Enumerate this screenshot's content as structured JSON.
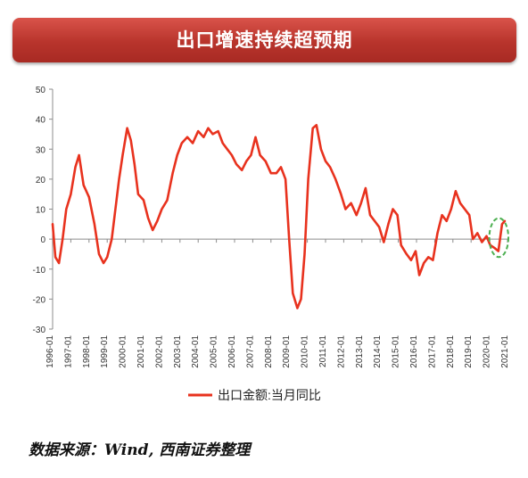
{
  "header": {
    "title": "出口增速持续超预期"
  },
  "source": "数据来源：Wind, 西南证券整理",
  "chart_data": {
    "type": "line",
    "title": "",
    "xlabel": "",
    "ylabel": "",
    "ylim": [
      -30,
      50
    ],
    "yticks": [
      -30,
      -20,
      -10,
      0,
      10,
      20,
      30,
      40,
      50
    ],
    "x_tick_labels": [
      "1996-01",
      "1997-01",
      "1998-01",
      "1999-01",
      "2000-01",
      "2001-01",
      "2002-01",
      "2003-01",
      "2004-01",
      "2005-01",
      "2006-01",
      "2007-01",
      "2008-01",
      "2009-01",
      "2010-01",
      "2011-01",
      "2012-01",
      "2013-01",
      "2014-01",
      "2015-01",
      "2016-01",
      "2017-01",
      "2018-01",
      "2019-01",
      "2020-01",
      "2021-01"
    ],
    "x_start_year": 1996,
    "grid": false,
    "legend_position": "bottom",
    "series_color": "#e8321e",
    "highlight_color": "#4caf50",
    "series": [
      {
        "name": "出口金额:当月同比",
        "points": [
          [
            1996.0,
            5
          ],
          [
            1996.15,
            -6
          ],
          [
            1996.35,
            -8
          ],
          [
            1996.55,
            0
          ],
          [
            1996.75,
            10
          ],
          [
            1997.0,
            15
          ],
          [
            1997.25,
            24
          ],
          [
            1997.45,
            28
          ],
          [
            1997.7,
            18
          ],
          [
            1998.0,
            14
          ],
          [
            1998.3,
            5
          ],
          [
            1998.55,
            -5
          ],
          [
            1998.8,
            -8
          ],
          [
            1999.0,
            -6
          ],
          [
            1999.25,
            0
          ],
          [
            1999.45,
            10
          ],
          [
            1999.65,
            20
          ],
          [
            1999.85,
            28
          ],
          [
            2000.1,
            37
          ],
          [
            2000.3,
            33
          ],
          [
            2000.5,
            25
          ],
          [
            2000.7,
            15
          ],
          [
            2001.0,
            13
          ],
          [
            2001.25,
            7
          ],
          [
            2001.5,
            3
          ],
          [
            2001.75,
            6
          ],
          [
            2002.0,
            10
          ],
          [
            2002.3,
            13
          ],
          [
            2002.6,
            22
          ],
          [
            2002.85,
            28
          ],
          [
            2003.1,
            32
          ],
          [
            2003.4,
            34
          ],
          [
            2003.7,
            32
          ],
          [
            2004.0,
            36
          ],
          [
            2004.3,
            34
          ],
          [
            2004.55,
            37
          ],
          [
            2004.8,
            35
          ],
          [
            2005.1,
            36
          ],
          [
            2005.35,
            32
          ],
          [
            2005.6,
            30
          ],
          [
            2005.85,
            28
          ],
          [
            2006.1,
            25
          ],
          [
            2006.4,
            23
          ],
          [
            2006.65,
            26
          ],
          [
            2006.9,
            28
          ],
          [
            2007.15,
            34
          ],
          [
            2007.4,
            28
          ],
          [
            2007.7,
            26
          ],
          [
            2008.0,
            22
          ],
          [
            2008.3,
            22
          ],
          [
            2008.55,
            24
          ],
          [
            2008.8,
            20
          ],
          [
            2009.0,
            0
          ],
          [
            2009.2,
            -18
          ],
          [
            2009.45,
            -23
          ],
          [
            2009.65,
            -20
          ],
          [
            2009.85,
            -5
          ],
          [
            2010.05,
            20
          ],
          [
            2010.3,
            37
          ],
          [
            2010.5,
            38
          ],
          [
            2010.75,
            30
          ],
          [
            2011.0,
            26
          ],
          [
            2011.25,
            24
          ],
          [
            2011.55,
            20
          ],
          [
            2011.85,
            15
          ],
          [
            2012.1,
            10
          ],
          [
            2012.4,
            12
          ],
          [
            2012.7,
            8
          ],
          [
            2012.95,
            12
          ],
          [
            2013.2,
            17
          ],
          [
            2013.45,
            8
          ],
          [
            2013.7,
            6
          ],
          [
            2013.95,
            4
          ],
          [
            2014.2,
            -1
          ],
          [
            2014.45,
            5
          ],
          [
            2014.7,
            10
          ],
          [
            2014.95,
            8
          ],
          [
            2015.15,
            -2
          ],
          [
            2015.45,
            -5
          ],
          [
            2015.7,
            -7
          ],
          [
            2015.95,
            -4
          ],
          [
            2016.15,
            -12
          ],
          [
            2016.4,
            -8
          ],
          [
            2016.65,
            -6
          ],
          [
            2016.9,
            -7
          ],
          [
            2017.15,
            2
          ],
          [
            2017.4,
            8
          ],
          [
            2017.65,
            6
          ],
          [
            2017.9,
            10
          ],
          [
            2018.15,
            16
          ],
          [
            2018.4,
            12
          ],
          [
            2018.65,
            10
          ],
          [
            2018.9,
            8
          ],
          [
            2019.1,
            0
          ],
          [
            2019.35,
            2
          ],
          [
            2019.6,
            -1
          ],
          [
            2019.85,
            1
          ],
          [
            2020.05,
            -2
          ],
          [
            2020.3,
            -3
          ],
          [
            2020.5,
            -4
          ],
          [
            2020.7,
            5
          ],
          [
            2020.85,
            6
          ]
        ]
      }
    ]
  }
}
